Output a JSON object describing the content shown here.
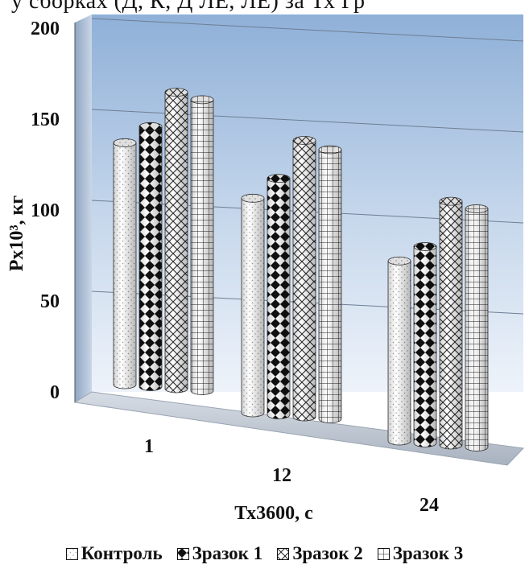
{
  "top_text": "у сборках (Д, К, Д ЛЕ, ЛЕ) за Тх Гр",
  "chart_data": {
    "type": "bar",
    "title": "",
    "xlabel": "Тх3600, с",
    "ylabel": "Рх10³, кг",
    "ylim": [
      0,
      200
    ],
    "yticks": [
      "0",
      "50",
      "100",
      "150",
      "200"
    ],
    "categories": [
      "1",
      "12",
      "24"
    ],
    "series": [
      {
        "name": "Контроль",
        "values": [
          133,
          118,
          99
        ]
      },
      {
        "name": "Зразок 1",
        "values": [
          143,
          130,
          108
        ]
      },
      {
        "name": "Зразок 2",
        "values": [
          163,
          152,
          134
        ]
      },
      {
        "name": "Зразок 3",
        "values": [
          160,
          148,
          131
        ]
      }
    ],
    "grid": true,
    "legend_position": "bottom"
  }
}
